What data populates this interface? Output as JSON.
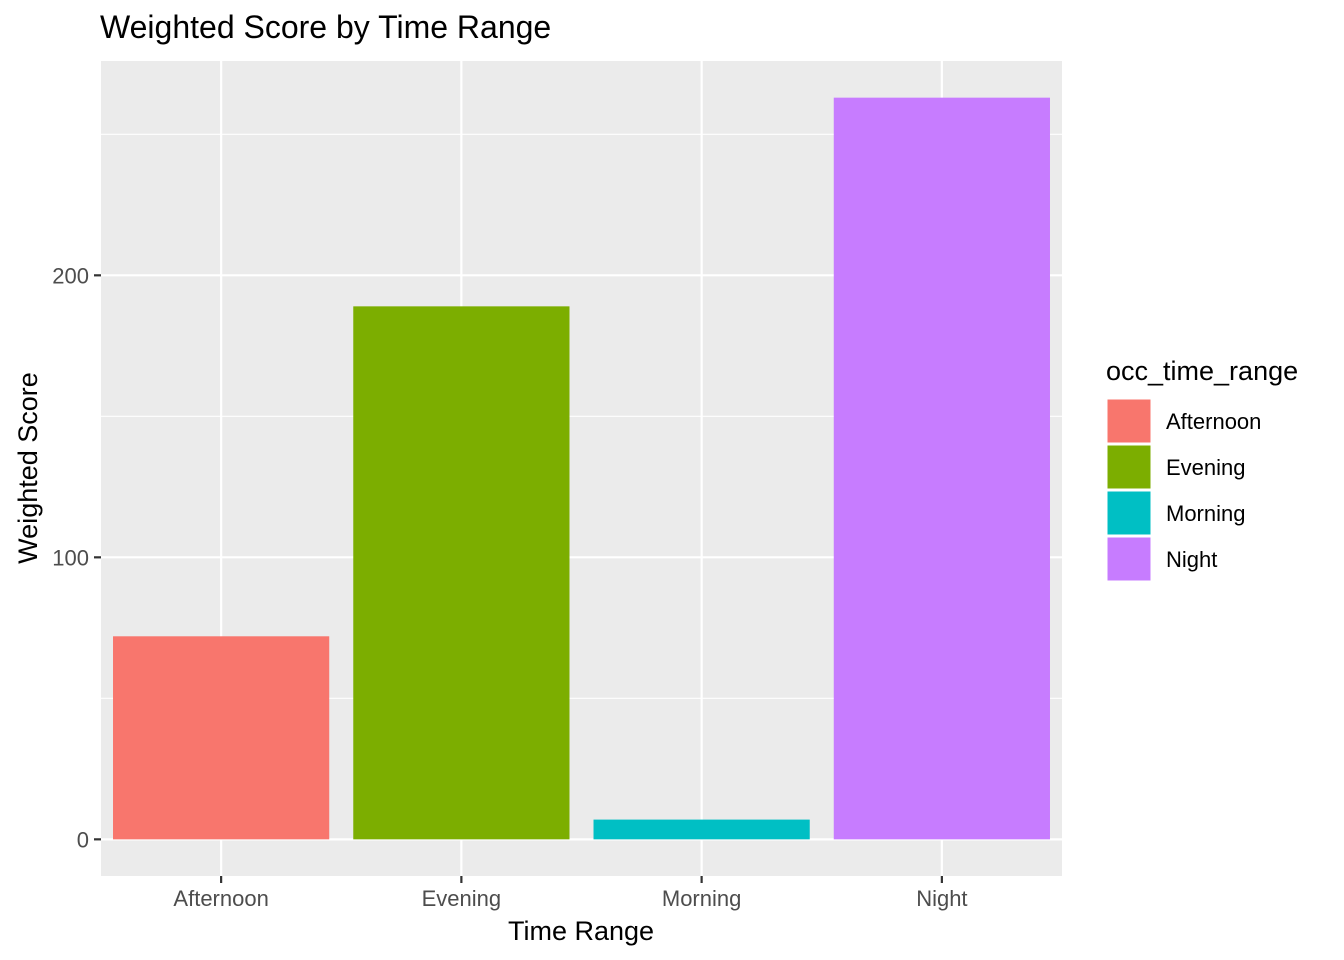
{
  "chart_data": {
    "type": "bar",
    "title": "Weighted Score by Time Range",
    "xlabel": "Time Range",
    "ylabel": "Weighted Score",
    "categories": [
      "Afternoon",
      "Evening",
      "Morning",
      "Night"
    ],
    "values": [
      72,
      189,
      7,
      263
    ],
    "colors": [
      "#F8766D",
      "#7CAE00",
      "#00BFC4",
      "#C77CFF"
    ],
    "ylim": [
      -13,
      276
    ],
    "yticks": [
      0,
      100,
      200
    ],
    "yminor": [
      50,
      150,
      250
    ],
    "grid": true,
    "panel_background": "#EBEBEB",
    "grid_color": "#FFFFFF",
    "legend": {
      "title": "occ_time_range",
      "placement": "right",
      "entries": [
        "Afternoon",
        "Evening",
        "Morning",
        "Night"
      ]
    }
  }
}
